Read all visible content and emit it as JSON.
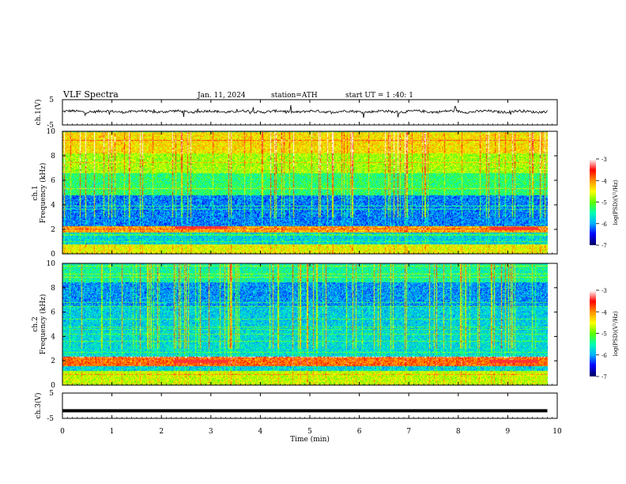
{
  "header": {
    "title": "VLF Spectra",
    "date": "Jan. 11, 2024",
    "station": "station=ATH",
    "start": "start UT =  1 :40: 1"
  },
  "colors": {
    "colormap": [
      "#000066",
      "#0000ff",
      "#00b4ff",
      "#00ffb0",
      "#60ff00",
      "#ffff00",
      "#ff9000",
      "#ff0000",
      "#ffffff"
    ],
    "trace": "#000000",
    "frame": "#000000"
  },
  "chart_data": [
    {
      "type": "line",
      "name": "ch1-voltage",
      "ylabel": "ch.1(V)",
      "ylim": [
        -5,
        5
      ],
      "yticks": [
        "5",
        "-5"
      ],
      "x_range": [
        0,
        10
      ],
      "trace_level": 0.3,
      "trace_noise": 0.5
    },
    {
      "type": "heatmap",
      "name": "ch1-spectrogram",
      "ylabel_top": "ch.1",
      "ylabel": "Frequency (kHz)",
      "ylim": [
        0,
        10
      ],
      "yticks": [
        "0",
        "2",
        "4",
        "6",
        "8",
        "10"
      ],
      "x_range": [
        0,
        10
      ],
      "bands_kHz": [
        [
          0.0,
          0.8,
          0.62
        ],
        [
          1.8,
          2.3,
          0.72
        ],
        [
          2.3,
          4.8,
          0.22
        ],
        [
          4.8,
          6.6,
          0.42
        ],
        [
          6.6,
          8.2,
          0.55
        ],
        [
          8.2,
          10.0,
          0.66
        ]
      ],
      "highlight": [
        {
          "x": [
            2.3,
            3.4
          ],
          "f_kHz": 2.2
        },
        {
          "x": [
            8.8,
            9.8
          ],
          "f_kHz": 2.1
        }
      ],
      "colorbar": {
        "label": "log(PSD)(V²/Hz)",
        "ticks": [
          "-3",
          "-4",
          "-5",
          "-6",
          "-7"
        ]
      }
    },
    {
      "type": "heatmap",
      "name": "ch2-spectrogram",
      "ylabel_top": "ch.2",
      "ylabel": "Frequency (kHz)",
      "ylim": [
        0,
        10
      ],
      "yticks": [
        "0",
        "2",
        "4",
        "6",
        "8",
        "10"
      ],
      "x_range": [
        0,
        10
      ],
      "bands_kHz": [
        [
          0.0,
          1.2,
          0.58
        ],
        [
          1.6,
          2.4,
          0.78
        ],
        [
          2.4,
          4.5,
          0.32
        ],
        [
          4.5,
          6.5,
          0.3
        ],
        [
          6.5,
          8.5,
          0.24
        ],
        [
          8.5,
          10.0,
          0.38
        ]
      ],
      "highlight": [
        {
          "x": [
            2.3,
            3.4
          ],
          "f_kHz": 2.0
        },
        {
          "x": [
            8.8,
            9.8
          ],
          "f_kHz": 2.0
        }
      ],
      "colorbar": {
        "label": "log(PSD)(V²/Hz)",
        "ticks": [
          "-3",
          "-4",
          "-5",
          "-6",
          "-7"
        ]
      }
    },
    {
      "type": "line",
      "name": "ch3-voltage",
      "ylabel": "ch.3(V)",
      "ylim": [
        -5,
        5
      ],
      "yticks": [
        "5",
        "-5"
      ],
      "x_range": [
        0,
        10
      ],
      "trace_level": -2.0,
      "trace_noise": 0.0
    }
  ],
  "xaxis": {
    "label": "Time (min)",
    "xlim": [
      0,
      10
    ],
    "ticks": [
      "0",
      "1",
      "2",
      "3",
      "4",
      "5",
      "6",
      "7",
      "8",
      "9",
      "10"
    ]
  }
}
